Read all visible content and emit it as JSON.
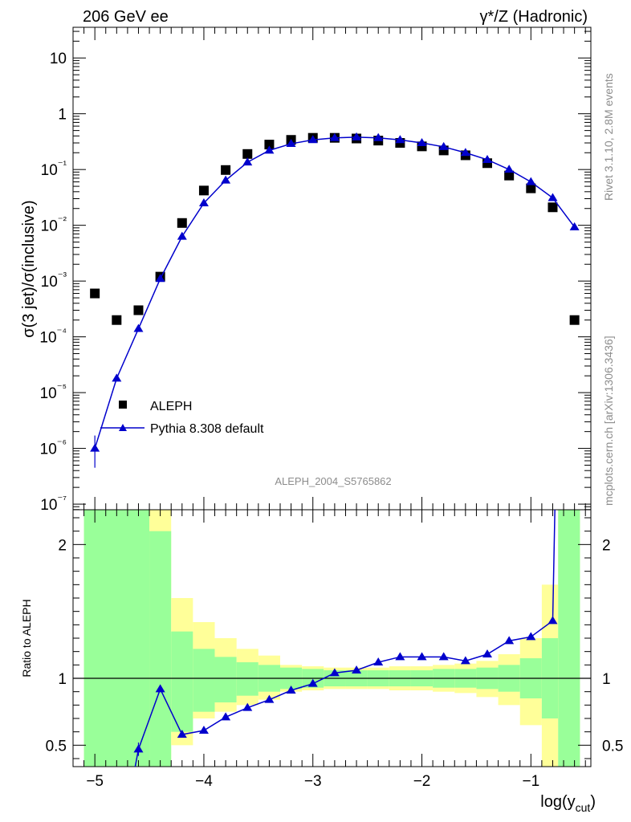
{
  "header": {
    "left": "206 GeV ee",
    "right": "γ*/Z (Hadronic)"
  },
  "side_labels": {
    "rivet": "Rivet 3.1.10,  2.8M events",
    "mcplots": "mcplots.cern.ch [arXiv:1306.3436]"
  },
  "analysis_label": "ALEPH_2004_S5765862",
  "chart_data": [
    {
      "type": "scatter",
      "title": "",
      "ylabel": "σ(3 jet)/σ(inclusive)",
      "yscale": "log",
      "xlim": [
        -5.2,
        -0.45
      ],
      "ylim_exponent": [
        -7.1,
        1.55
      ],
      "ytick_labels": [
        "10",
        "1",
        "10⁻¹",
        "10⁻²",
        "10⁻³",
        "10⁻⁴",
        "10⁻⁵",
        "10⁻⁶",
        "10⁻⁷"
      ],
      "legend": [
        {
          "label": "ALEPH",
          "marker": "square",
          "color": "#000000"
        },
        {
          "label": "Pythia 8.308 default",
          "marker": "triangle",
          "color": "#0000cc"
        }
      ],
      "series": [
        {
          "name": "ALEPH",
          "x": [
            -5.0,
            -4.8,
            -4.6,
            -4.4,
            -4.2,
            -4.0,
            -3.8,
            -3.6,
            -3.4,
            -3.2,
            -3.0,
            -2.8,
            -2.6,
            -2.4,
            -2.2,
            -2.0,
            -1.8,
            -1.6,
            -1.4,
            -1.2,
            -1.0,
            -0.8,
            -0.6
          ],
          "y": [
            0.0006,
            0.0002,
            0.0003,
            0.0012,
            0.011,
            0.042,
            0.098,
            0.19,
            0.28,
            0.34,
            0.37,
            0.37,
            0.36,
            0.33,
            0.3,
            0.26,
            0.22,
            0.18,
            0.13,
            0.078,
            0.046,
            0.021,
            0.0002
          ]
        },
        {
          "name": "Pythia 8.308 default",
          "x": [
            -5.0,
            -4.8,
            -4.6,
            -4.4,
            -4.2,
            -4.0,
            -3.8,
            -3.6,
            -3.4,
            -3.2,
            -3.0,
            -2.8,
            -2.6,
            -2.4,
            -2.2,
            -2.0,
            -1.8,
            -1.6,
            -1.4,
            -1.2,
            -1.0,
            -0.8,
            -0.6
          ],
          "y": [
            1e-06,
            1.8e-05,
            0.00014,
            0.0011,
            0.0063,
            0.025,
            0.064,
            0.135,
            0.22,
            0.29,
            0.34,
            0.37,
            0.38,
            0.37,
            0.34,
            0.3,
            0.255,
            0.2,
            0.15,
            0.1,
            0.06,
            0.031,
            0.0093
          ],
          "yerr_first": [
            4.5e-07,
            1.7e-06
          ]
        }
      ]
    },
    {
      "type": "line",
      "ylabel": "Ratio to ALEPH",
      "xlabel": "log(y",
      "xlabel_sub": "cut",
      "xlabel_close": ")",
      "ylim": [
        0.34,
        2.26
      ],
      "yticks": [
        0.5,
        1,
        2
      ],
      "ytick_labels": [
        "0.5",
        "1",
        "2"
      ],
      "xticks": [
        -5,
        -4,
        -3,
        -2,
        -1
      ],
      "xtick_labels": [
        "−5",
        "−4",
        "−3",
        "−2",
        "−1"
      ],
      "reference_line": 1,
      "bins": [
        {
          "lo": -5.1,
          "hi": -4.5,
          "in": [
            0,
            3
          ],
          "out": [
            0,
            3
          ]
        },
        {
          "lo": -4.5,
          "hi": -4.3,
          "in": [
            0,
            2.1
          ],
          "out": [
            0,
            3
          ]
        },
        {
          "lo": -4.3,
          "hi": -4.1,
          "in": [
            0.6,
            1.35
          ],
          "out": [
            0.5,
            1.6
          ]
        },
        {
          "lo": -4.1,
          "hi": -3.9,
          "in": [
            0.75,
            1.22
          ],
          "out": [
            0.7,
            1.42
          ]
        },
        {
          "lo": -3.9,
          "hi": -3.7,
          "in": [
            0.82,
            1.16
          ],
          "out": [
            0.75,
            1.3
          ]
        },
        {
          "lo": -3.7,
          "hi": -3.5,
          "in": [
            0.87,
            1.12
          ],
          "out": [
            0.8,
            1.22
          ]
        },
        {
          "lo": -3.5,
          "hi": -3.3,
          "in": [
            0.9,
            1.1
          ],
          "out": [
            0.84,
            1.17
          ]
        },
        {
          "lo": -3.3,
          "hi": -3.1,
          "in": [
            0.92,
            1.08
          ],
          "out": [
            0.9,
            1.1
          ]
        },
        {
          "lo": -3.1,
          "hi": -2.9,
          "in": [
            0.93,
            1.07
          ],
          "out": [
            0.91,
            1.09
          ]
        },
        {
          "lo": -2.9,
          "hi": -2.7,
          "in": [
            0.94,
            1.06
          ],
          "out": [
            0.92,
            1.08
          ]
        },
        {
          "lo": -2.7,
          "hi": -2.5,
          "in": [
            0.94,
            1.06
          ],
          "out": [
            0.92,
            1.08
          ]
        },
        {
          "lo": -2.5,
          "hi": -2.3,
          "in": [
            0.94,
            1.06
          ],
          "out": [
            0.92,
            1.08
          ]
        },
        {
          "lo": -2.3,
          "hi": -2.1,
          "in": [
            0.94,
            1.06
          ],
          "out": [
            0.91,
            1.09
          ]
        },
        {
          "lo": -2.1,
          "hi": -1.9,
          "in": [
            0.94,
            1.06
          ],
          "out": [
            0.91,
            1.09
          ]
        },
        {
          "lo": -1.9,
          "hi": -1.7,
          "in": [
            0.93,
            1.07
          ],
          "out": [
            0.9,
            1.1
          ]
        },
        {
          "lo": -1.7,
          "hi": -1.5,
          "in": [
            0.93,
            1.07
          ],
          "out": [
            0.89,
            1.11
          ]
        },
        {
          "lo": -1.5,
          "hi": -1.3,
          "in": [
            0.92,
            1.08
          ],
          "out": [
            0.86,
            1.13
          ]
        },
        {
          "lo": -1.3,
          "hi": -1.1,
          "in": [
            0.9,
            1.1
          ],
          "out": [
            0.8,
            1.18
          ]
        },
        {
          "lo": -1.1,
          "hi": -0.9,
          "in": [
            0.85,
            1.15
          ],
          "out": [
            0.65,
            1.3
          ]
        },
        {
          "lo": -0.9,
          "hi": -0.75,
          "in": [
            0.7,
            1.3
          ],
          "out": [
            0,
            1.7
          ]
        },
        {
          "lo": -0.75,
          "hi": -0.55,
          "in": [
            0,
            3
          ],
          "out": [
            0,
            3
          ]
        }
      ],
      "series": [
        {
          "name": "Pythia 8.308 default / ALEPH",
          "x": [
            -4.6,
            -4.4,
            -4.2,
            -4.0,
            -3.8,
            -3.6,
            -3.4,
            -3.2,
            -3.0,
            -2.8,
            -2.6,
            -2.4,
            -2.2,
            -2.0,
            -1.8,
            -1.6,
            -1.4,
            -1.2,
            -1.0,
            -0.8
          ],
          "y": [
            0.47,
            0.92,
            0.58,
            0.61,
            0.71,
            0.78,
            0.84,
            0.91,
            0.96,
            1.04,
            1.06,
            1.12,
            1.16,
            1.16,
            1.16,
            1.13,
            1.18,
            1.28,
            1.31,
            1.43
          ],
          "yerr_first": [
            0.42,
            0.52
          ],
          "tail": [
            [
              -4.63,
              0.3
            ],
            [
              -0.78,
              2.4
            ]
          ]
        }
      ]
    }
  ],
  "colors": {
    "band_inner": "#99ff99",
    "band_outer": "#ffff99",
    "mc": "#0000cc",
    "data": "#000000",
    "side_text": "#8c8c8c"
  }
}
